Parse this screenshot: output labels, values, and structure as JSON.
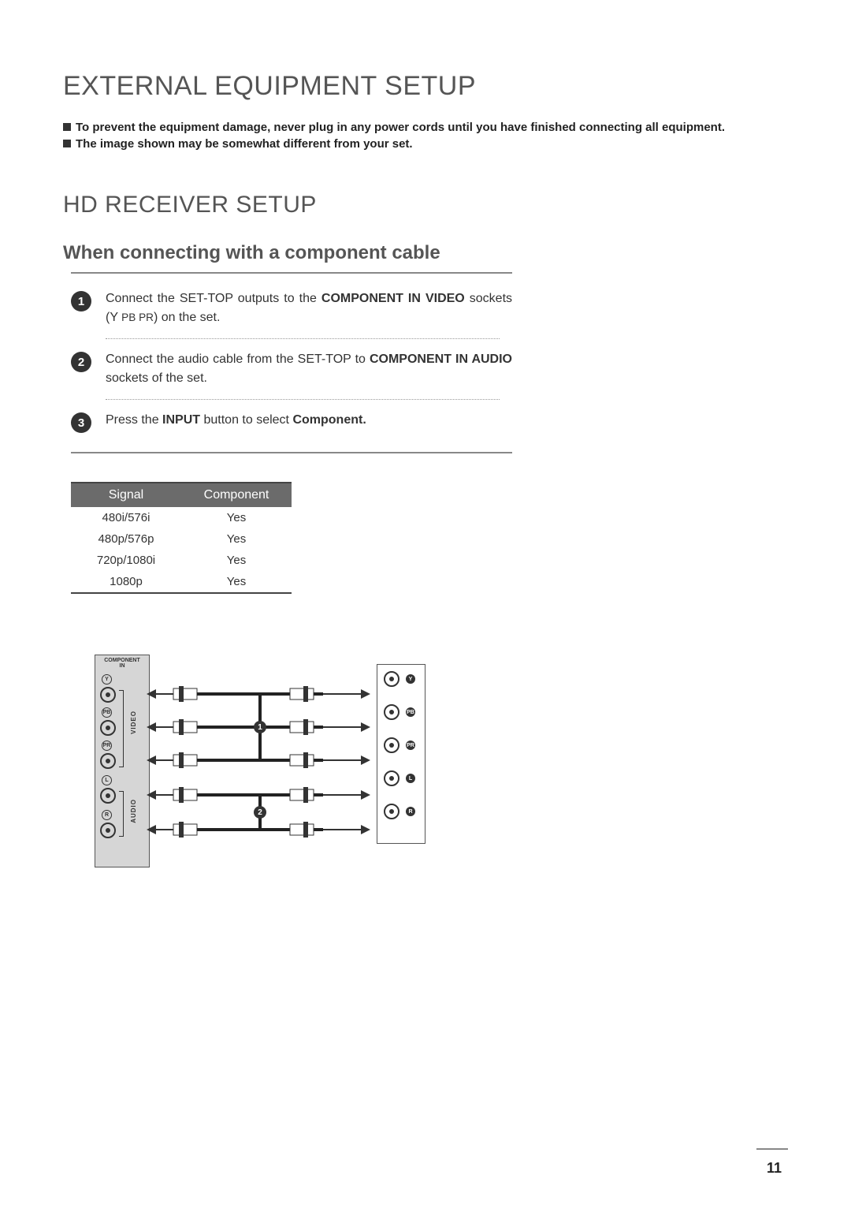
{
  "title": "EXTERNAL EQUIPMENT SETUP",
  "notes": [
    "To prevent the equipment damage, never plug in any power cords until you have finished connecting all equipment.",
    "The image shown may be somewhat different from your set."
  ],
  "subtitle": "HD RECEIVER SETUP",
  "section": "When connecting with a component cable",
  "steps": [
    {
      "n": "1",
      "pre": "Connect the SET-TOP outputs to the ",
      "bold1": "COMPONENT IN VIDEO",
      "mid": " sockets (Y ",
      "small": "PB PR",
      "post": ") on the set."
    },
    {
      "n": "2",
      "pre": "Connect the audio cable from the SET-TOP to ",
      "bold1": "COMPONENT IN AUDIO",
      "mid": "",
      "small": "",
      "post": " sockets of the set."
    },
    {
      "n": "3",
      "pre": "Press the ",
      "bold1": "INPUT",
      "mid": " button to select ",
      "small": "",
      "post": "",
      "bold2": "Component."
    }
  ],
  "table": {
    "headers": [
      "Signal",
      "Component"
    ],
    "rows": [
      [
        "480i/576i",
        "Yes"
      ],
      [
        "480p/576p",
        "Yes"
      ],
      [
        "720p/1080i",
        "Yes"
      ],
      [
        "1080p",
        "Yes"
      ]
    ]
  },
  "diagram": {
    "left_header": "COMPONENT\nIN",
    "left_jacks": [
      "Y",
      "PB",
      "PR",
      "L",
      "R"
    ],
    "left_group_labels": [
      "VIDEO",
      "AUDIO"
    ],
    "right_jacks": [
      "Y",
      "PB",
      "PR",
      "L",
      "R"
    ],
    "badges": [
      "1",
      "2"
    ],
    "colors": {
      "panel_bg": "#d6d6d6",
      "line": "#333333",
      "thick_line": "#222222"
    }
  },
  "page_number": "11"
}
